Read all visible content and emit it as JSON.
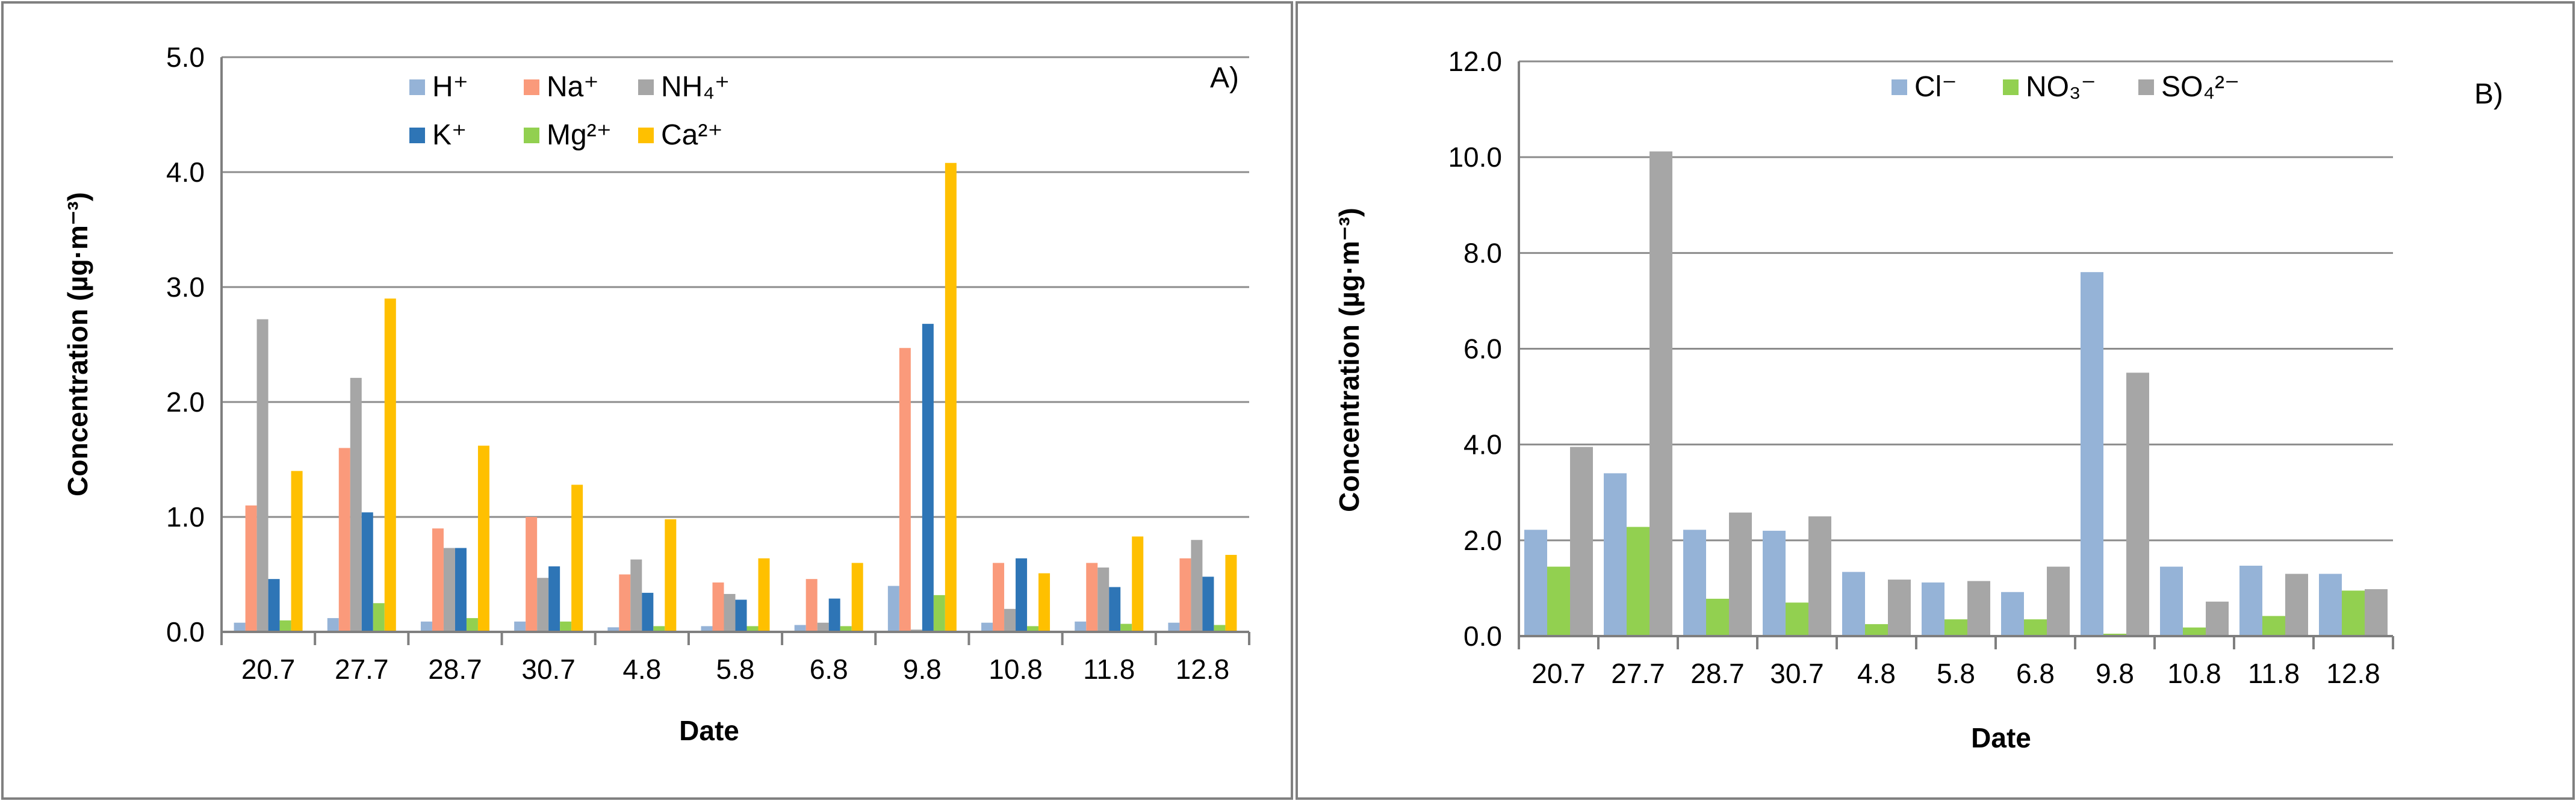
{
  "chart_data": [
    {
      "type": "bar",
      "panel_label": "A)",
      "xlabel": "Date",
      "ylabel": "Concentration (µg·m⁻³)",
      "ylim": [
        0,
        5
      ],
      "yticks": [
        "0.0",
        "1.0",
        "2.0",
        "3.0",
        "4.0",
        "5.0"
      ],
      "grid": true,
      "legend_position": "top-center",
      "categories": [
        "20.7",
        "27.7",
        "28.7",
        "30.7",
        "4.8",
        "5.8",
        "6.8",
        "9.8",
        "10.8",
        "11.8",
        "12.8"
      ],
      "series": [
        {
          "name": "H⁺",
          "color": "#95b3d7",
          "values": [
            0.08,
            0.12,
            0.09,
            0.09,
            0.04,
            0.05,
            0.06,
            0.4,
            0.08,
            0.09,
            0.08
          ]
        },
        {
          "name": "Na⁺",
          "color": "#fa9a7b",
          "values": [
            1.1,
            1.6,
            0.9,
            1.0,
            0.5,
            0.43,
            0.46,
            2.47,
            0.6,
            0.6,
            0.64
          ]
        },
        {
          "name": "NH₄⁺",
          "color": "#a6a6a6",
          "values": [
            2.72,
            2.21,
            0.73,
            0.47,
            0.63,
            0.33,
            0.08,
            0.02,
            0.2,
            0.56,
            0.8
          ]
        },
        {
          "name": "K⁺",
          "color": "#2e75b6",
          "values": [
            0.46,
            1.04,
            0.73,
            0.57,
            0.34,
            0.28,
            0.29,
            2.68,
            0.64,
            0.39,
            0.48
          ]
        },
        {
          "name": "Mg²⁺",
          "color": "#92d050",
          "values": [
            0.1,
            0.25,
            0.12,
            0.09,
            0.05,
            0.05,
            0.05,
            0.32,
            0.05,
            0.07,
            0.06
          ]
        },
        {
          "name": "Ca²⁺",
          "color": "#ffc000",
          "values": [
            1.4,
            2.9,
            1.62,
            1.28,
            0.98,
            0.64,
            0.6,
            4.08,
            0.51,
            0.83,
            0.67
          ]
        }
      ]
    },
    {
      "type": "bar",
      "panel_label": "B)",
      "xlabel": "Date",
      "ylabel": "Concentration (µg·m⁻³)",
      "ylim": [
        0,
        12
      ],
      "yticks": [
        "0.0",
        "2.0",
        "4.0",
        "6.0",
        "8.0",
        "10.0",
        "12.0"
      ],
      "grid": true,
      "legend_position": "top-center",
      "categories": [
        "20.7",
        "27.7",
        "28.7",
        "30.7",
        "4.8",
        "5.8",
        "6.8",
        "9.8",
        "10.8",
        "11.8",
        "12.8"
      ],
      "series": [
        {
          "name": "Cl⁻",
          "color": "#95b3d7",
          "values": [
            2.22,
            3.4,
            2.22,
            2.2,
            1.34,
            1.12,
            0.92,
            7.6,
            1.45,
            1.47,
            1.3
          ]
        },
        {
          "name": "NO₃⁻",
          "color": "#92d050",
          "values": [
            1.45,
            2.28,
            0.78,
            0.7,
            0.25,
            0.35,
            0.35,
            0.05,
            0.18,
            0.42,
            0.95
          ]
        },
        {
          "name": "SO₄²⁻",
          "color": "#a6a6a6",
          "values": [
            3.95,
            10.12,
            2.58,
            2.5,
            1.18,
            1.15,
            1.45,
            5.5,
            0.72,
            1.3,
            0.98
          ]
        }
      ]
    }
  ]
}
